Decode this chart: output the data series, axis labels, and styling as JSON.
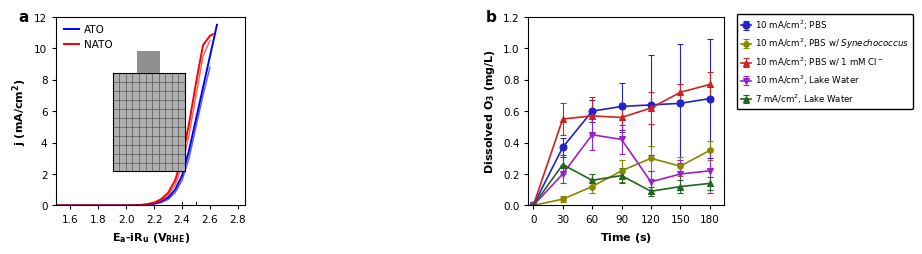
{
  "panel_a": {
    "ATO_color": "#0000ff",
    "NATO_color": "#ff0000",
    "ATO_fwd_x": [
      1.5,
      1.9,
      2.0,
      2.05,
      2.1,
      2.15,
      2.2,
      2.25,
      2.3,
      2.35,
      2.4,
      2.45,
      2.5,
      2.55,
      2.6,
      2.65
    ],
    "ATO_fwd_y": [
      0,
      0,
      0,
      0,
      0.02,
      0.06,
      0.12,
      0.25,
      0.5,
      1.0,
      1.9,
      3.5,
      5.5,
      7.5,
      9.5,
      11.5
    ],
    "NATO_fwd_x": [
      1.5,
      1.9,
      2.0,
      2.05,
      2.1,
      2.15,
      2.2,
      2.25,
      2.3,
      2.35,
      2.4,
      2.45,
      2.5,
      2.55,
      2.6,
      2.62
    ],
    "NATO_fwd_y": [
      0,
      0,
      0,
      0,
      0.02,
      0.08,
      0.18,
      0.4,
      0.8,
      1.6,
      3.0,
      5.2,
      7.8,
      10.2,
      10.8,
      10.9
    ],
    "ATO_back_x": [
      1.5,
      1.9,
      2.0,
      2.05,
      2.1,
      2.15,
      2.2,
      2.25,
      2.3,
      2.35,
      2.4,
      2.45,
      2.5,
      2.55,
      2.6
    ],
    "ATO_back_y": [
      0,
      0,
      0,
      0,
      0.01,
      0.04,
      0.09,
      0.18,
      0.38,
      0.8,
      1.6,
      3.0,
      5.0,
      7.0,
      8.8
    ],
    "NATO_back_x": [
      1.5,
      1.9,
      2.0,
      2.05,
      2.1,
      2.15,
      2.2,
      2.25,
      2.3,
      2.35,
      2.4,
      2.45,
      2.5,
      2.55,
      2.6
    ],
    "NATO_back_y": [
      0,
      0,
      0,
      0,
      0.01,
      0.05,
      0.13,
      0.3,
      0.65,
      1.3,
      2.5,
      4.5,
      7.0,
      9.5,
      10.5
    ],
    "dashed_x1": 2.4,
    "dashed_x2": 2.5,
    "ylim": [
      0,
      12
    ],
    "yticks": [
      0,
      2,
      4,
      6,
      8,
      10,
      12
    ],
    "xlim": [
      1.5,
      2.85
    ],
    "xticks": [
      1.6,
      1.8,
      2.0,
      2.2,
      2.4,
      2.6,
      2.8
    ]
  },
  "panel_b": {
    "ylim": [
      0.0,
      1.2
    ],
    "yticks": [
      0.0,
      0.2,
      0.4,
      0.6,
      0.8,
      1.0,
      1.2
    ],
    "xlim": [
      -5,
      195
    ],
    "xticks": [
      0,
      30,
      60,
      90,
      120,
      150,
      180
    ],
    "series": [
      {
        "label": "10 mA/cm$^2$; PBS",
        "color": "#2222cc",
        "marker": "o",
        "markersize": 5,
        "x": [
          0,
          30,
          60,
          90,
          120,
          150,
          180
        ],
        "y": [
          0.0,
          0.37,
          0.6,
          0.63,
          0.64,
          0.65,
          0.68
        ],
        "yerr": [
          0.01,
          0.06,
          0.07,
          0.15,
          0.32,
          0.38,
          0.38
        ]
      },
      {
        "label": "10 mA/cm$^2$, PBS w/ $\\mathit{Synechococcus}$",
        "color": "#888800",
        "marker": "o",
        "markersize": 4,
        "x": [
          0,
          30,
          60,
          90,
          120,
          150,
          180
        ],
        "y": [
          0.0,
          0.04,
          0.12,
          0.22,
          0.3,
          0.25,
          0.35
        ],
        "yerr": [
          0.01,
          0.02,
          0.04,
          0.07,
          0.08,
          0.06,
          0.06
        ]
      },
      {
        "label": "10 mA/cm$^2$; PBS w/ 1 mM Cl$^-$",
        "color": "#cc2222",
        "marker": "^",
        "markersize": 5,
        "x": [
          0,
          30,
          60,
          90,
          120,
          150,
          180
        ],
        "y": [
          0.0,
          0.55,
          0.57,
          0.56,
          0.62,
          0.72,
          0.77
        ],
        "yerr": [
          0.01,
          0.1,
          0.12,
          0.09,
          0.1,
          0.05,
          0.08
        ]
      },
      {
        "label": "10 mA/cm$^2$, Lake Water",
        "color": "#9922cc",
        "marker": "v",
        "markersize": 5,
        "x": [
          0,
          30,
          60,
          90,
          120,
          150,
          180
        ],
        "y": [
          0.0,
          0.2,
          0.45,
          0.42,
          0.15,
          0.2,
          0.22
        ],
        "yerr": [
          0.01,
          0.06,
          0.1,
          0.09,
          0.07,
          0.09,
          0.14
        ]
      },
      {
        "label": "7 mA/cm$^2$, Lake Water",
        "color": "#226622",
        "marker": "^",
        "markersize": 5,
        "x": [
          0,
          30,
          60,
          90,
          120,
          150,
          180
        ],
        "y": [
          0.0,
          0.26,
          0.16,
          0.19,
          0.09,
          0.12,
          0.14
        ],
        "yerr": [
          0.01,
          0.06,
          0.04,
          0.05,
          0.03,
          0.04,
          0.04
        ]
      }
    ]
  }
}
